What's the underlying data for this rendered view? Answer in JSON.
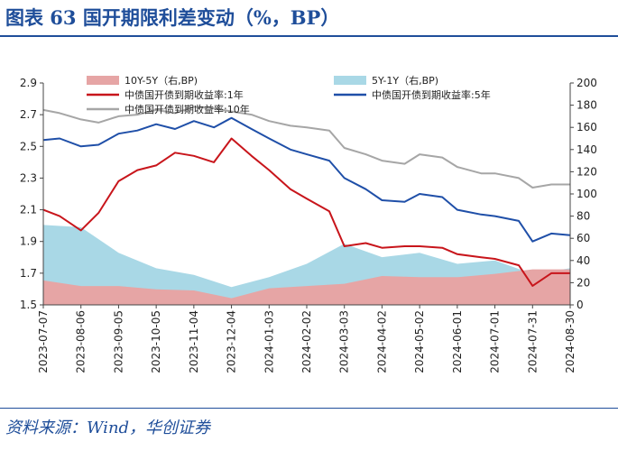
{
  "title": "图表 63    国开期限利差变动（%，BP）",
  "source": "资料来源：Wind，华创证券",
  "chart_data": {
    "type": "line",
    "x_ticks": [
      "2023-07-07",
      "2023-08-06",
      "2023-09-05",
      "2023-10-05",
      "2023-11-04",
      "2023-12-04",
      "2024-01-03",
      "2024-02-02",
      "2024-03-03",
      "2024-04-02",
      "2024-05-02",
      "2024-06-01",
      "2024-07-01",
      "2024-07-31",
      "2024-08-30"
    ],
    "y_left": {
      "min": 1.5,
      "max": 2.9,
      "ticks": [
        "1.5",
        "1.7",
        "1.9",
        "2.1",
        "2.3",
        "2.5",
        "2.7",
        "2.9"
      ]
    },
    "y_right": {
      "min": 0,
      "max": 200,
      "ticks": [
        "0",
        "20",
        "40",
        "60",
        "80",
        "100",
        "120",
        "140",
        "160",
        "180",
        "200"
      ]
    },
    "legend": [
      {
        "name": "10Y-5Y（右,BP)",
        "color": "#e6a5a5",
        "kind": "area"
      },
      {
        "name": "5Y-1Y（右,BP)",
        "color": "#a9d8e6",
        "kind": "area"
      },
      {
        "name": "中债国开债到期收益率:1年",
        "color": "#c8151b",
        "kind": "line"
      },
      {
        "name": "中债国开债到期收益率:5年",
        "color": "#1f4fa8",
        "kind": "line"
      },
      {
        "name": "中债国开债到期收益率:10年",
        "color": "#a6a6a6",
        "kind": "line"
      }
    ],
    "series": [
      {
        "name": "中债国开债到期收益率:10年",
        "axis": "left",
        "color": "#a6a6a6",
        "x": [
          "2023-07-07",
          "2023-07-20",
          "2023-08-06",
          "2023-08-20",
          "2023-09-05",
          "2023-09-20",
          "2023-10-05",
          "2023-10-20",
          "2023-11-04",
          "2023-11-20",
          "2023-12-04",
          "2023-12-20",
          "2024-01-03",
          "2024-01-20",
          "2024-02-02",
          "2024-02-20",
          "2024-03-03",
          "2024-03-20",
          "2024-04-02",
          "2024-04-20",
          "2024-05-02",
          "2024-05-20",
          "2024-06-01",
          "2024-06-20",
          "2024-07-01",
          "2024-07-20",
          "2024-07-31",
          "2024-08-15",
          "2024-08-30"
        ],
        "values": [
          2.73,
          2.71,
          2.67,
          2.65,
          2.69,
          2.7,
          2.73,
          2.71,
          2.75,
          2.74,
          2.72,
          2.7,
          2.66,
          2.63,
          2.62,
          2.6,
          2.49,
          2.45,
          2.41,
          2.39,
          2.45,
          2.43,
          2.37,
          2.33,
          2.33,
          2.3,
          2.24,
          2.26,
          2.26
        ]
      },
      {
        "name": "中债国开债到期收益率:5年",
        "axis": "left",
        "color": "#1f4fa8",
        "x": [
          "2023-07-07",
          "2023-07-20",
          "2023-08-06",
          "2023-08-20",
          "2023-09-05",
          "2023-09-20",
          "2023-10-05",
          "2023-10-20",
          "2023-11-04",
          "2023-11-20",
          "2023-12-04",
          "2023-12-20",
          "2024-01-03",
          "2024-01-20",
          "2024-02-02",
          "2024-02-20",
          "2024-03-03",
          "2024-03-20",
          "2024-04-02",
          "2024-04-20",
          "2024-05-02",
          "2024-05-20",
          "2024-06-01",
          "2024-06-20",
          "2024-07-01",
          "2024-07-20",
          "2024-07-31",
          "2024-08-15",
          "2024-08-30"
        ],
        "values": [
          2.54,
          2.55,
          2.5,
          2.51,
          2.58,
          2.6,
          2.64,
          2.61,
          2.66,
          2.62,
          2.68,
          2.61,
          2.55,
          2.48,
          2.45,
          2.41,
          2.3,
          2.23,
          2.16,
          2.15,
          2.2,
          2.18,
          2.1,
          2.07,
          2.06,
          2.03,
          1.9,
          1.95,
          1.94
        ]
      },
      {
        "name": "中债国开债到期收益率:1年",
        "axis": "left",
        "color": "#c8151b",
        "x": [
          "2023-07-07",
          "2023-07-20",
          "2023-08-06",
          "2023-08-20",
          "2023-09-05",
          "2023-09-20",
          "2023-10-05",
          "2023-10-20",
          "2023-11-04",
          "2023-11-20",
          "2023-12-04",
          "2023-12-20",
          "2024-01-03",
          "2024-01-20",
          "2024-02-02",
          "2024-02-20",
          "2024-03-03",
          "2024-03-20",
          "2024-04-02",
          "2024-04-20",
          "2024-05-02",
          "2024-05-20",
          "2024-06-01",
          "2024-06-20",
          "2024-07-01",
          "2024-07-20",
          "2024-07-31",
          "2024-08-15",
          "2024-08-30"
        ],
        "values": [
          2.1,
          2.06,
          1.97,
          2.08,
          2.28,
          2.35,
          2.38,
          2.46,
          2.44,
          2.4,
          2.55,
          2.44,
          2.35,
          2.23,
          2.17,
          2.09,
          1.87,
          1.89,
          1.86,
          1.87,
          1.87,
          1.86,
          1.82,
          1.8,
          1.79,
          1.75,
          1.62,
          1.7,
          1.7
        ]
      },
      {
        "name": "5Y-1Y（右,BP)",
        "axis": "right",
        "color": "#a9d8e6",
        "x": [
          "2023-07-07",
          "2023-08-06",
          "2023-09-05",
          "2023-10-05",
          "2023-11-04",
          "2023-12-04",
          "2024-01-03",
          "2024-02-02",
          "2024-03-03",
          "2024-04-02",
          "2024-05-02",
          "2024-06-01",
          "2024-07-01",
          "2024-07-31",
          "2024-08-30"
        ],
        "values": [
          72,
          70,
          47,
          33,
          27,
          16,
          25,
          37,
          55,
          43,
          47,
          37,
          40,
          28,
          33
        ]
      },
      {
        "name": "10Y-5Y（右,BP)",
        "axis": "right",
        "color": "#e6a5a5",
        "x": [
          "2023-07-07",
          "2023-08-06",
          "2023-09-05",
          "2023-10-05",
          "2023-11-04",
          "2023-12-04",
          "2024-01-03",
          "2024-02-02",
          "2024-03-03",
          "2024-04-02",
          "2024-05-02",
          "2024-06-01",
          "2024-07-01",
          "2024-07-31",
          "2024-08-30"
        ],
        "values": [
          22,
          17,
          17,
          14,
          13,
          6,
          15,
          17,
          19,
          26,
          25,
          25,
          28,
          32,
          32
        ]
      }
    ]
  }
}
